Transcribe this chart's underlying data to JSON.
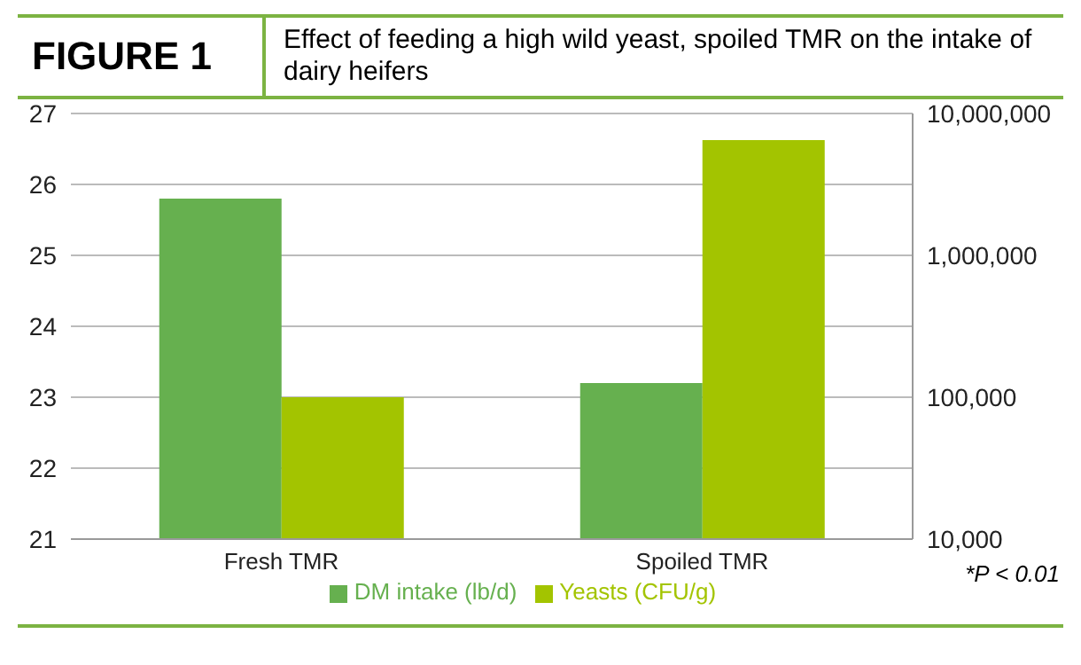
{
  "chart_data": {
    "type": "bar",
    "title": "FIGURE 1",
    "subtitle": "Effect of feeding a high wild yeast, spoiled TMR on the intake of dairy heifers",
    "categories": [
      "Fresh TMR",
      "Spoiled TMR"
    ],
    "series": [
      {
        "name": "DM intake (lb/d)",
        "color": "#66b04f",
        "values": [
          25.8,
          23.2
        ]
      },
      {
        "name": "Yeasts (CFU/g)",
        "color": "#a3c400",
        "values": [
          100000,
          6500000
        ],
        "axis": "y2"
      }
    ],
    "ylim": [
      21,
      27
    ],
    "yticks": [
      21,
      22,
      23,
      24,
      25,
      26,
      27
    ],
    "y2lim": [
      10000,
      10000000
    ],
    "y2ticks": [
      {
        "value": 10000,
        "label": "10,000"
      },
      {
        "value": 100000,
        "label": "100,000"
      },
      {
        "value": 1000000,
        "label": "1,000,000"
      },
      {
        "value": 10000000,
        "label": "10,000,000"
      }
    ],
    "log": "y2",
    "grid": "y",
    "legend": "bottom",
    "annotations": [
      "*P < 0.01"
    ]
  }
}
